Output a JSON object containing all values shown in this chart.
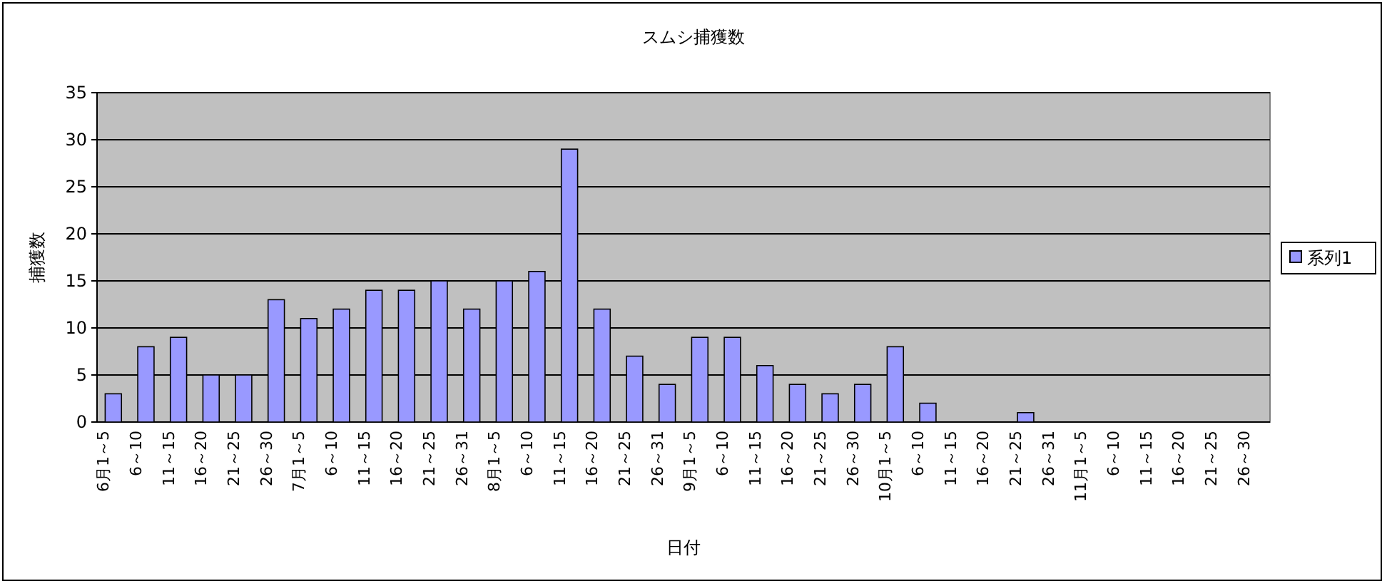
{
  "chart_data": {
    "type": "bar",
    "title": "スムシ捕獲数",
    "xlabel": "日付",
    "ylabel": "捕獲数",
    "categories": [
      "6月1～5",
      "6～10",
      "11～15",
      "16～20",
      "21～25",
      "26～30",
      "7月1～5",
      "6～10",
      "11～15",
      "16～20",
      "21～25",
      "26～31",
      "8月1～5",
      "6～10",
      "11～15",
      "16～20",
      "21～25",
      "26～31",
      "9月1～5",
      "6～10",
      "11～15",
      "16～20",
      "21～25",
      "26～30",
      "10月1～5",
      "6～10",
      "11～15",
      "16～20",
      "21～25",
      "26～31",
      "11月1～5",
      "6～10",
      "11～15",
      "16～20",
      "21～25",
      "26～30"
    ],
    "series": [
      {
        "name": "系列1",
        "color": "#9999ff",
        "values": [
          3,
          8,
          9,
          5,
          5,
          13,
          11,
          12,
          14,
          14,
          15,
          12,
          15,
          16,
          29,
          12,
          7,
          4,
          9,
          9,
          6,
          4,
          3,
          4,
          8,
          2,
          null,
          null,
          1,
          null,
          null,
          null,
          null,
          null,
          null,
          null
        ]
      }
    ],
    "ylim": [
      0,
      35
    ],
    "yticks": [
      0,
      5,
      10,
      15,
      20,
      25,
      30,
      35
    ],
    "grid": "y",
    "legend": "right"
  }
}
